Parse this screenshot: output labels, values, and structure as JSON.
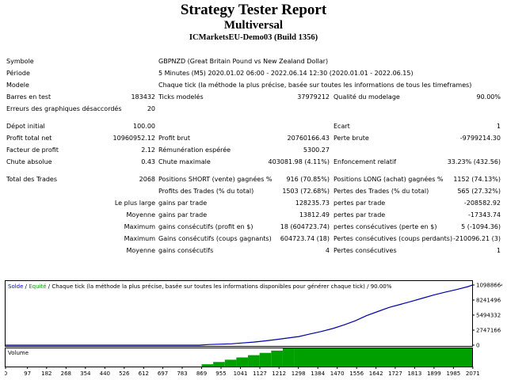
{
  "header": {
    "title": "Strategy Tester Report",
    "subtitle": "Multiversal",
    "server": "ICMarketsEU-Demo03 (Build 1356)"
  },
  "info": {
    "symbol_label": "Symbole",
    "symbol_value": "GBPNZD (Great Britain Pound vs New Zealand Dollar)",
    "period_label": "Période",
    "period_value": "5 Minutes (M5) 2020.01.02 06:00 - 2022.06.14 12:30 (2020.01.01 - 2022.06.15)",
    "model_label": "Modele",
    "model_value": "Chaque tick (la méthode la plus précise, basée sur toutes les informations de tous les timeframes)",
    "bars_label": "Barres en test",
    "bars_value": "183432",
    "ticks_label": "Ticks modelés",
    "ticks_value": "37979212",
    "quality_label": "Qualité du modelage",
    "quality_value": "90.00%",
    "errors_label": "Erreurs des graphiques désaccordés",
    "errors_value": "20"
  },
  "stats": {
    "deposit_label": "Dépot initial",
    "deposit_value": "100.00",
    "spread_label": "Ecart",
    "spread_value": "1",
    "net_label": "Profit total net",
    "net_value": "10960952.12",
    "gross_profit_label": "Profit brut",
    "gross_profit_value": "20760166.43",
    "gross_loss_label": "Perte brute",
    "gross_loss_value": "-9799214.30",
    "pf_label": "Facteur de profit",
    "pf_value": "2.12",
    "payoff_label": "Rémunération espérée",
    "payoff_value": "5300.27",
    "abs_dd_label": "Chute absolue",
    "abs_dd_value": "0.43",
    "max_dd_label": "Chute maximale",
    "max_dd_value": "403081.98 (4.11%)",
    "rel_dd_label": "Enfoncement relatif",
    "rel_dd_value": "33.23% (432.56)"
  },
  "trades": {
    "total_label": "Total des Trades",
    "total_value": "2068",
    "short_label": "Positions SHORT (vente) gagnées %",
    "short_value": "916 (70.85%)",
    "long_label": "Positions LONG (achat) gagnées %",
    "long_value": "1152 (74.13%)",
    "profit_trades_label": "Profits des Trades (% du total)",
    "profit_trades_value": "1503 (72.68%)",
    "loss_trades_label": "Pertes des Trades (% du total)",
    "loss_trades_value": "565 (27.32%)",
    "largest_label": "Le plus large",
    "largest_gain_label": "gains par trade",
    "largest_gain_value": "128235.73",
    "largest_loss_label": "pertes par trade",
    "largest_loss_value": "-208582.92",
    "average_label": "Moyenne",
    "average_gain_label": "gains par trade",
    "average_gain_value": "13812.49",
    "average_loss_label": "pertes par trade",
    "average_loss_value": "-17343.74",
    "max1_label": "Maximum",
    "max_cons_wins_label": "gains consécutifs (profit en $)",
    "max_cons_wins_value": "18 (604723.74)",
    "max_cons_losses_label": "pertes consécutives (perte en $)",
    "max_cons_losses_value": "5 (-1094.36)",
    "max2_label": "Maximum",
    "max_cons_profit_label": "Gains consécutifs (coups gagnants)",
    "max_cons_profit_value": "604723.74 (18)",
    "max_cons_loss_label": "Pertes consécutives (coups perdants)",
    "max_cons_loss_value": "-210096.21 (3)",
    "avg2_label": "Moyenne",
    "avg_cons_wins_label": "gains consécutifs",
    "avg_cons_wins_value": "4",
    "avg_cons_losses_label": "Pertes consécutives",
    "avg_cons_losses_value": "1"
  },
  "chart_data": {
    "type": "line",
    "legend_solde": "Solde",
    "legend_sep1": " / ",
    "legend_equite": "Equité",
    "legend_rest": " / Chaque tick (la méthode la plus précise, basée sur toutes les informations disponibles pour générer chaque tick) / 90.00%",
    "volume_label": "Volume",
    "ylim": [
      0,
      10988664
    ],
    "y_ticks": [
      "10988664",
      "8241496",
      "5494332",
      "2747166",
      "0"
    ],
    "x_ticks": [
      "0",
      "97",
      "182",
      "268",
      "354",
      "440",
      "526",
      "612",
      "697",
      "783",
      "869",
      "955",
      "1041",
      "1127",
      "1212",
      "1298",
      "1384",
      "1470",
      "1556",
      "1642",
      "1727",
      "1813",
      "1899",
      "1985",
      "2071"
    ],
    "xlim": [
      0,
      2068
    ],
    "series": [
      {
        "name": "Solde",
        "x": [
          0,
          700,
          860,
          900,
          1000,
          1050,
          1100,
          1150,
          1200,
          1250,
          1300,
          1350,
          1400,
          1450,
          1500,
          1550,
          1600,
          1650,
          1700,
          1750,
          1800,
          1850,
          1900,
          1950,
          2000,
          2050,
          2068
        ],
        "y": [
          100,
          2000,
          6000,
          120000,
          250000,
          400000,
          560000,
          780000,
          1020000,
          1300000,
          1580000,
          2050000,
          2500000,
          3030000,
          3700000,
          4450000,
          5400000,
          6150000,
          6900000,
          7450000,
          8010000,
          8600000,
          9200000,
          9700000,
          10170000,
          10700000,
          10960952
        ]
      }
    ],
    "volume_start_trade": 869,
    "volume_ramp_end_trade": 1280,
    "colors": {
      "balance": "#0000a8",
      "equity": "#00a000",
      "volume": "#00a000",
      "legend_text": "#0000ff",
      "legend_equity": "#00a000"
    }
  }
}
